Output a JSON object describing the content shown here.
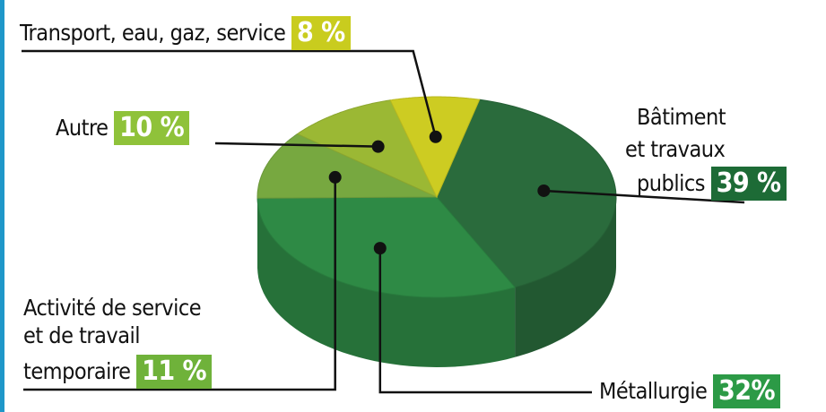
{
  "chart_data": {
    "type": "pie",
    "title": "",
    "slices": [
      {
        "label": "Bâtiment et travaux publics",
        "label_lines": [
          "Bâtiment",
          "et travaux",
          "publics"
        ],
        "value": 39,
        "value_label": "39 %",
        "color": "#2a6b3c",
        "badge_color": "#1d6b36"
      },
      {
        "label": "Métallurgie",
        "label_lines": [
          "Métallurgie"
        ],
        "value": 32,
        "value_label": "32%",
        "color": "#2e8a45",
        "badge_color": "#2c9a46"
      },
      {
        "label": "Activité de service et de travail temporaire",
        "label_lines": [
          "Activité de service",
          "et de travail",
          "temporaire"
        ],
        "value": 11,
        "value_label": "11 %",
        "color": "#77a840",
        "badge_color": "#6fb23a"
      },
      {
        "label": "Autre",
        "label_lines": [
          "Autre"
        ],
        "value": 10,
        "value_label": "10 %",
        "color": "#9bb834",
        "badge_color": "#8fc23a"
      },
      {
        "label": "Transport, eau, gaz, service",
        "label_lines": [
          "Transport, eau, gaz, service"
        ],
        "value": 8,
        "value_label": "8 %",
        "color": "#cdcc22",
        "badge_color": "#c9cc1e"
      }
    ]
  }
}
